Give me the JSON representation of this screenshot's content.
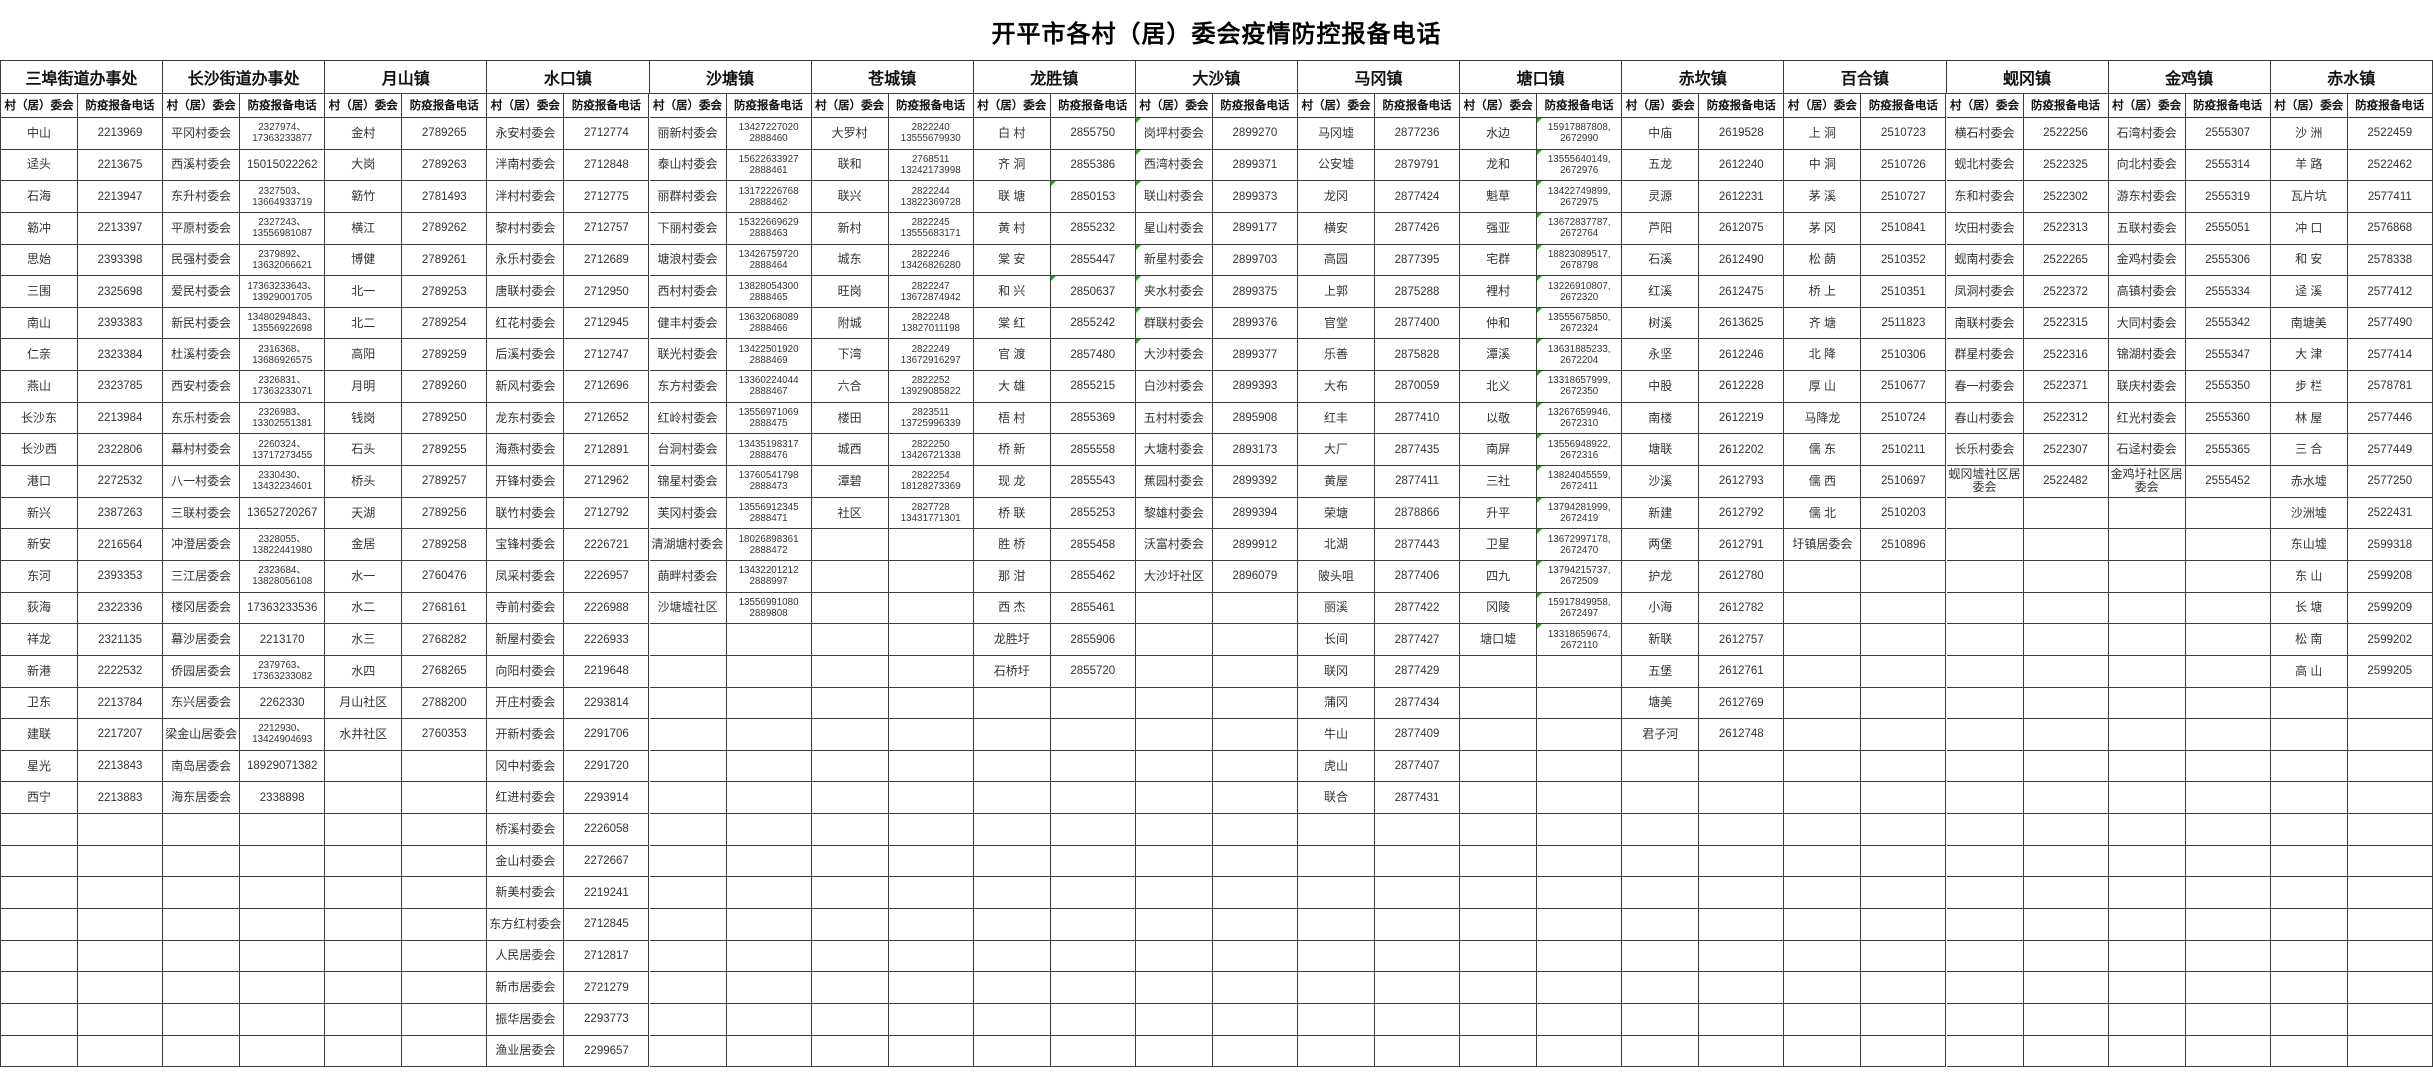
{
  "title": "开平市各村（居）委会疫情防控报备电话",
  "subheaders": {
    "name": "村（居）委会",
    "phone": "防疫报备电话"
  },
  "towns": [
    {
      "name": "三埠街道办事处",
      "rows": [
        [
          "中山",
          "2213969"
        ],
        [
          "迳头",
          "2213675"
        ],
        [
          "石海",
          "2213947"
        ],
        [
          "簕冲",
          "2213397"
        ],
        [
          "思始",
          "2393398"
        ],
        [
          "三围",
          "2325698"
        ],
        [
          "南山",
          "2393383"
        ],
        [
          "仁亲",
          "2323384"
        ],
        [
          "燕山",
          "2323785"
        ],
        [
          "长沙东",
          "2213984"
        ],
        [
          "长沙西",
          "2322806"
        ],
        [
          "港口",
          "2272532"
        ],
        [
          "新兴",
          "2387263"
        ],
        [
          "新安",
          "2216564"
        ],
        [
          "东河",
          "2393353"
        ],
        [
          "荻海",
          "2322336"
        ],
        [
          "祥龙",
          "2321135"
        ],
        [
          "新港",
          "2222532"
        ],
        [
          "卫东",
          "2213784"
        ],
        [
          "建联",
          "2217207"
        ],
        [
          "星光",
          "2213843"
        ],
        [
          "西宁",
          "2213883"
        ]
      ]
    },
    {
      "name": "长沙街道办事处",
      "rows": [
        [
          "平冈村委会",
          "2327974、\n17363233877"
        ],
        [
          "西溪村委会",
          "15015022262"
        ],
        [
          "东升村委会",
          "2327503、\n13664933719"
        ],
        [
          "平原村委会",
          "2327243、\n13556981087"
        ],
        [
          "民强村委会",
          "2379892、\n13632066621"
        ],
        [
          "爱民村委会",
          "17363233643、\n13929001705"
        ],
        [
          "新民村委会",
          "13480294843、\n13556922698"
        ],
        [
          "杜溪村委会",
          "2316368、\n13686926575"
        ],
        [
          "西安村委会",
          "2326831、\n17363233071"
        ],
        [
          "东乐村委会",
          "2326983、\n13302551381"
        ],
        [
          "幕村村委会",
          "2260324、\n13717273455"
        ],
        [
          "八一村委会",
          "2330430、\n13432234601"
        ],
        [
          "三联村委会",
          "13652720267"
        ],
        [
          "冲澄居委会",
          "2328055、\n13822441980"
        ],
        [
          "三江居委会",
          "2323684、\n13828056108"
        ],
        [
          "楼冈居委会",
          "17363233536"
        ],
        [
          "幕沙居委会",
          "2213170"
        ],
        [
          "侨园居委会",
          "2379763、\n17363233082"
        ],
        [
          "东兴居委会",
          "2262330"
        ],
        [
          "梁金山居委会",
          "2212930、\n13424904693"
        ],
        [
          "南岛居委会",
          "18929071382"
        ],
        [
          "海东居委会",
          "2338898"
        ]
      ]
    },
    {
      "name": "月山镇",
      "rows": [
        [
          "金村",
          "2789265"
        ],
        [
          "大岗",
          "2789263"
        ],
        [
          "簕竹",
          "2781493"
        ],
        [
          "横江",
          "2789262"
        ],
        [
          "博健",
          "2789261"
        ],
        [
          "北一",
          "2789253"
        ],
        [
          "北二",
          "2789254"
        ],
        [
          "高阳",
          "2789259"
        ],
        [
          "月明",
          "2789260"
        ],
        [
          "钱岗",
          "2789250"
        ],
        [
          "石头",
          "2789255"
        ],
        [
          "桥头",
          "2789257"
        ],
        [
          "天湖",
          "2789256"
        ],
        [
          "金居",
          "2789258"
        ],
        [
          "水一",
          "2760476"
        ],
        [
          "水二",
          "2768161"
        ],
        [
          "水三",
          "2768282"
        ],
        [
          "水四",
          "2768265"
        ],
        [
          "月山社区",
          "2788200"
        ],
        [
          "水井社区",
          "2760353"
        ]
      ]
    },
    {
      "name": "水口镇",
      "rows": [
        [
          "永安村委会",
          "2712774"
        ],
        [
          "泮南村委会",
          "2712848"
        ],
        [
          "泮村村委会",
          "2712775"
        ],
        [
          "黎村村委会",
          "2712757"
        ],
        [
          "永乐村委会",
          "2712689"
        ],
        [
          "唐联村委会",
          "2712950"
        ],
        [
          "红花村委会",
          "2712945"
        ],
        [
          "后溪村委会",
          "2712747"
        ],
        [
          "新风村委会",
          "2712696"
        ],
        [
          "龙东村委会",
          "2712652"
        ],
        [
          "海燕村委会",
          "2712891"
        ],
        [
          "开锋村委会",
          "2712962"
        ],
        [
          "联竹村委会",
          "2712792"
        ],
        [
          "宝锋村委会",
          "2226721"
        ],
        [
          "凤采村委会",
          "2226957"
        ],
        [
          "寺前村委会",
          "2226988"
        ],
        [
          "新屋村委会",
          "2226933"
        ],
        [
          "向阳村委会",
          "2219648"
        ],
        [
          "开庄村委会",
          "2293814"
        ],
        [
          "开新村委会",
          "2291706"
        ],
        [
          "冈中村委会",
          "2291720"
        ],
        [
          "红进村委会",
          "2293914"
        ],
        [
          "桥溪村委会",
          "2226058"
        ],
        [
          "金山村委会",
          "2272667"
        ],
        [
          "新美村委会",
          "2219241"
        ],
        [
          "东方红村委会",
          "2712845"
        ],
        [
          "人民居委会",
          "2712817"
        ],
        [
          "新市居委会",
          "2721279"
        ],
        [
          "振华居委会",
          "2293773"
        ],
        [
          "渔业居委会",
          "2299657"
        ]
      ]
    },
    {
      "name": "沙塘镇",
      "rows": [
        [
          "丽新村委会",
          "13427227020\n2888460"
        ],
        [
          "泰山村委会",
          "15622633927\n2888461"
        ],
        [
          "丽群村委会",
          "13172226768\n2888462"
        ],
        [
          "下丽村委会",
          "15322669629\n2888463"
        ],
        [
          "塘浪村委会",
          "13426759720\n2888464"
        ],
        [
          "西村村委会",
          "13828054300\n2888465"
        ],
        [
          "健丰村委会",
          "13632068089\n2888466"
        ],
        [
          "联光村委会",
          "13422501920\n2888469"
        ],
        [
          "东方村委会",
          "13360224044\n2888467"
        ],
        [
          "红岭村委会",
          "13556971069\n2888475"
        ],
        [
          "台洞村委会",
          "13435198317\n2888476"
        ],
        [
          "锦星村委会",
          "13760541798\n2888473"
        ],
        [
          "芙冈村委会",
          "13556912345\n2888471"
        ],
        [
          "清湖塘村委会",
          "18026898361\n2888472"
        ],
        [
          "蓢畔村委会",
          "13432201212\n2888997"
        ],
        [
          "沙塘墟社区",
          "13556991080\n2889808"
        ]
      ]
    },
    {
      "name": "苍城镇",
      "rows": [
        [
          "大罗村",
          "2822240\n13555679930"
        ],
        [
          "联和",
          "2768511\n13242173998"
        ],
        [
          "联兴",
          "2822244\n13822369728"
        ],
        [
          "新村",
          "2822245\n13555683171"
        ],
        [
          "城东",
          "2822246\n13426826280"
        ],
        [
          "旺岗",
          "2822247\n13672874942"
        ],
        [
          "附城",
          "2822248\n13827011198"
        ],
        [
          "下湾",
          "2822249\n13672916297"
        ],
        [
          "六合",
          "2822252\n13929085822"
        ],
        [
          "楼田",
          "2823511\n13725996339"
        ],
        [
          "城西",
          "2822250\n13426721338"
        ],
        [
          "潭碧",
          "2822254\n18128273369"
        ],
        [
          "社区",
          "2827728\n13431771301"
        ]
      ]
    },
    {
      "name": "龙胜镇",
      "rows": [
        [
          "白 村",
          "2855750"
        ],
        [
          "齐 洞",
          "2855386"
        ],
        [
          "联 塘",
          "2850153",
          1
        ],
        [
          "黄 村",
          "2855232"
        ],
        [
          "棠 安",
          "2855447"
        ],
        [
          "和 兴",
          "2850637",
          1
        ],
        [
          "棠 红",
          "2855242"
        ],
        [
          "官 渡",
          "2857480"
        ],
        [
          "大 雄",
          "2855215"
        ],
        [
          "梧 村",
          "2855369"
        ],
        [
          "桥 新",
          "2855558"
        ],
        [
          "现 龙",
          "2855543"
        ],
        [
          "桥 联",
          "2855253"
        ],
        [
          "胜 桥",
          "2855458"
        ],
        [
          "那 泔",
          "2855462"
        ],
        [
          "西 杰",
          "2855461"
        ],
        [
          "龙胜圩",
          "2855906"
        ],
        [
          "石桥圩",
          "2855720"
        ]
      ]
    },
    {
      "name": "大沙镇",
      "rows": [
        [
          "岗坪村委会",
          "2899270",
          2
        ],
        [
          "西湾村委会",
          "2899371",
          2
        ],
        [
          "联山村委会",
          "2899373",
          2
        ],
        [
          "星山村委会",
          "2899177"
        ],
        [
          "新星村委会",
          "2899703",
          2
        ],
        [
          "夹水村委会",
          "2899375",
          2
        ],
        [
          "群联村委会",
          "2899376",
          2
        ],
        [
          "大沙村委会",
          "2899377",
          2
        ],
        [
          "白沙村委会",
          "2899393"
        ],
        [
          "五村村委会",
          "2895908"
        ],
        [
          "大塘村委会",
          "2893173"
        ],
        [
          "蕉园村委会",
          "2899392"
        ],
        [
          "黎雄村委会",
          "2899394"
        ],
        [
          "沃富村委会",
          "2899912"
        ],
        [
          "大沙圩社区",
          "2896079"
        ]
      ]
    },
    {
      "name": "马冈镇",
      "rows": [
        [
          "马冈墟",
          "2877236"
        ],
        [
          "公安墟",
          "2879791"
        ],
        [
          "龙冈",
          "2877424"
        ],
        [
          "横安",
          "2877426"
        ],
        [
          "高园",
          "2877395"
        ],
        [
          "上郭",
          "2875288"
        ],
        [
          "官堂",
          "2877400"
        ],
        [
          "乐善",
          "2875828"
        ],
        [
          "大布",
          "2870059"
        ],
        [
          "红丰",
          "2877410"
        ],
        [
          "大厂",
          "2877435"
        ],
        [
          "黄屋",
          "2877411"
        ],
        [
          "荣塘",
          "2878866"
        ],
        [
          "北湖",
          "2877443"
        ],
        [
          "陂头咀",
          "2877406"
        ],
        [
          "丽溪",
          "2877422"
        ],
        [
          "长间",
          "2877427"
        ],
        [
          "联冈",
          "2877429"
        ],
        [
          "蒲冈",
          "2877434"
        ],
        [
          "牛山",
          "2877409"
        ],
        [
          "虎山",
          "2877407"
        ],
        [
          "联合",
          "2877431"
        ]
      ]
    },
    {
      "name": "塘口镇",
      "rows": [
        [
          "水边",
          "15917887808,\n2672990",
          1
        ],
        [
          "龙和",
          "13555640149,\n2672976",
          1
        ],
        [
          "魁草",
          "13422749899,\n2672975",
          1
        ],
        [
          "强亚",
          "13672837787,\n2672764",
          1
        ],
        [
          "宅群",
          "18823089517,\n2678798",
          1
        ],
        [
          "裡村",
          "13226910807,\n2672320",
          1
        ],
        [
          "仲和",
          "13555675850,\n2672324",
          1
        ],
        [
          "潭溪",
          "13631885233,\n2672204",
          1
        ],
        [
          "北义",
          "13318657999,\n2672350",
          1
        ],
        [
          "以敬",
          "13267659946,\n2672310",
          1
        ],
        [
          "南屏",
          "13556948922,\n2672316",
          1
        ],
        [
          "三社",
          "13824045559,\n2672411",
          1
        ],
        [
          "升平",
          "13794281999,\n2672419",
          1
        ],
        [
          "卫星",
          "13672997178,\n2672470",
          1
        ],
        [
          "四九",
          "13794215737,\n2672509",
          1
        ],
        [
          "冈陵",
          "15917849958,\n2672497",
          1
        ],
        [
          "塘口墟",
          "13318659674,\n2672110",
          1
        ]
      ]
    },
    {
      "name": "赤坎镇",
      "rows": [
        [
          "中庙",
          "2619528"
        ],
        [
          "五龙",
          "2612240"
        ],
        [
          "灵源",
          "2612231"
        ],
        [
          "芦阳",
          "2612075"
        ],
        [
          "石溪",
          "2612490"
        ],
        [
          "红溪",
          "2612475"
        ],
        [
          "树溪",
          "2613625"
        ],
        [
          "永坚",
          "2612246"
        ],
        [
          "中股",
          "2612228"
        ],
        [
          "南楼",
          "2612219"
        ],
        [
          "塘联",
          "2612202"
        ],
        [
          "沙溪",
          "2612793"
        ],
        [
          "新建",
          "2612792"
        ],
        [
          "两堡",
          "2612791"
        ],
        [
          "护龙",
          "2612780"
        ],
        [
          "小海",
          "2612782"
        ],
        [
          "新联",
          "2612757"
        ],
        [
          "五堡",
          "2612761"
        ],
        [
          "塘美",
          "2612769"
        ],
        [
          "君子河",
          "2612748"
        ]
      ]
    },
    {
      "name": "百合镇",
      "rows": [
        [
          "上 洞",
          "2510723"
        ],
        [
          "中 洞",
          "2510726"
        ],
        [
          "茅 溪",
          "2510727"
        ],
        [
          "茅 冈",
          "2510841"
        ],
        [
          "松 蓢",
          "2510352"
        ],
        [
          "桥 上",
          "2510351"
        ],
        [
          "齐 塘",
          "2511823"
        ],
        [
          "北 降",
          "2510306"
        ],
        [
          "厚 山",
          "2510677"
        ],
        [
          "马降龙",
          "2510724"
        ],
        [
          "儒 东",
          "2510211"
        ],
        [
          "儒 西",
          "2510697"
        ],
        [
          "儒 北",
          "2510203"
        ],
        [
          "圩镇居委会",
          "2510896"
        ]
      ]
    },
    {
      "name": "蚬冈镇",
      "rows": [
        [
          "横石村委会",
          "2522256"
        ],
        [
          "蚬北村委会",
          "2522325"
        ],
        [
          "东和村委会",
          "2522302"
        ],
        [
          "坎田村委会",
          "2522313"
        ],
        [
          "蚬南村委会",
          "2522265"
        ],
        [
          "凤洞村委会",
          "2522372"
        ],
        [
          "南联村委会",
          "2522315"
        ],
        [
          "群星村委会",
          "2522316"
        ],
        [
          "春一村委会",
          "2522371"
        ],
        [
          "春山村委会",
          "2522312"
        ],
        [
          "长乐村委会",
          "2522307"
        ],
        [
          "蚬冈墟社区居委会",
          "2522482"
        ]
      ]
    },
    {
      "name": "金鸡镇",
      "rows": [
        [
          "石湾村委会",
          "2555307"
        ],
        [
          "向北村委会",
          "2555314"
        ],
        [
          "游东村委会",
          "2555319"
        ],
        [
          "五联村委会",
          "2555051"
        ],
        [
          "金鸡村委会",
          "2555306"
        ],
        [
          "高镇村委会",
          "2555334"
        ],
        [
          "大同村委会",
          "2555342"
        ],
        [
          "锦湖村委会",
          "2555347"
        ],
        [
          "联庆村委会",
          "2555350"
        ],
        [
          "红光村委会",
          "2555360"
        ],
        [
          "石迳村委会",
          "2555365"
        ],
        [
          "金鸡圩社区居委会",
          "2555452"
        ]
      ]
    },
    {
      "name": "赤水镇",
      "rows": [
        [
          "沙 洲",
          "2522459"
        ],
        [
          "羊 路",
          "2522462"
        ],
        [
          "瓦片坑",
          "2577411"
        ],
        [
          "冲 口",
          "2576868"
        ],
        [
          "和 安",
          "2578338"
        ],
        [
          "迳 溪",
          "2577412"
        ],
        [
          "南塘美",
          "2577490"
        ],
        [
          "大 津",
          "2577414"
        ],
        [
          "步 栏",
          "2578781"
        ],
        [
          "林 屋",
          "2577446"
        ],
        [
          "三 合",
          "2577449"
        ],
        [
          "赤水墟",
          "2577250"
        ],
        [
          "沙洲墟",
          "2522431"
        ],
        [
          "东山墟",
          "2599318"
        ],
        [
          "东 山",
          "2599208"
        ],
        [
          "长 塘",
          "2599209"
        ],
        [
          "松 南",
          "2599202"
        ],
        [
          "高 山",
          "2599205"
        ]
      ]
    }
  ]
}
